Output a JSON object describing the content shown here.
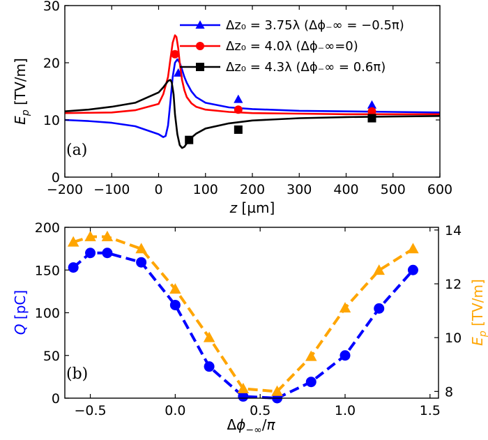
{
  "chart_data": [
    {
      "type": "line",
      "panel_label": "(a)",
      "xlabel": "z [µm]",
      "ylabel": "E_p [TV/m]",
      "xlim": [
        -200,
        600
      ],
      "ylim": [
        0,
        30
      ],
      "xticks": [
        "−200",
        "−100",
        "0",
        "100",
        "200",
        "300",
        "400",
        "500",
        "600"
      ],
      "yticks": [
        "0",
        "10",
        "20",
        "30"
      ],
      "grid": false,
      "legend_position": "top-right",
      "series": [
        {
          "name": "Δz₀ = 3.75λ (Δϕ₋∞ = −0.5π)",
          "color": "#0000ff",
          "marker": "triangle",
          "line_x": [
            -200,
            -150,
            -100,
            -50,
            0,
            10,
            15,
            20,
            25,
            30,
            35,
            40,
            45,
            50,
            55,
            60,
            70,
            80,
            100,
            150,
            200,
            300,
            400,
            500,
            600
          ],
          "line_y": [
            10.0,
            9.8,
            9.5,
            8.9,
            7.5,
            7.0,
            7.2,
            9.0,
            13.0,
            17.5,
            20.0,
            20.6,
            20.0,
            18.8,
            17.5,
            16.5,
            15.0,
            14.0,
            13.0,
            12.2,
            11.9,
            11.6,
            11.5,
            11.4,
            11.3
          ],
          "markers_x": [
            42,
            170,
            455
          ],
          "markers_y": [
            18.2,
            13.6,
            12.6
          ]
        },
        {
          "name": "Δz₀ = 4.0λ (Δϕ₋∞=0)",
          "color": "#ff0000",
          "marker": "circle",
          "line_x": [
            -200,
            -100,
            -50,
            0,
            10,
            20,
            25,
            30,
            35,
            38,
            42,
            45,
            50,
            55,
            60,
            70,
            80,
            100,
            150,
            200,
            300,
            400,
            500,
            600
          ],
          "line_y": [
            11.2,
            11.3,
            11.7,
            12.8,
            14.5,
            17.5,
            20.5,
            23.5,
            24.8,
            24.5,
            22.5,
            20.0,
            17.0,
            15.2,
            14.0,
            12.9,
            12.3,
            11.8,
            11.4,
            11.2,
            11.1,
            11.0,
            11.0,
            11.0
          ],
          "markers_x": [
            35,
            170,
            455
          ],
          "markers_y": [
            21.5,
            11.8,
            11.5
          ]
        },
        {
          "name": "Δz₀ = 4.3λ (Δϕ₋∞ = 0.6π)",
          "color": "#000000",
          "marker": "square",
          "line_x": [
            -200,
            -150,
            -100,
            -50,
            0,
            10,
            20,
            25,
            28,
            32,
            35,
            40,
            45,
            50,
            55,
            60,
            70,
            80,
            100,
            150,
            200,
            300,
            400,
            500,
            600
          ],
          "line_y": [
            11.5,
            11.8,
            12.3,
            13.0,
            14.8,
            15.7,
            16.8,
            17.0,
            16.6,
            14.5,
            11.0,
            7.5,
            5.6,
            5.1,
            5.3,
            5.9,
            6.9,
            7.6,
            8.5,
            9.4,
            9.9,
            10.3,
            10.5,
            10.6,
            10.7
          ],
          "markers_x": [
            65,
            170,
            455
          ],
          "markers_y": [
            6.5,
            8.3,
            10.3
          ]
        }
      ]
    },
    {
      "type": "line",
      "panel_label": "(b)",
      "xlabel": "Δϕ₋∞/π",
      "ylabel_left": "Q [pC]",
      "ylabel_right": "E_p [TV/m]",
      "xlim": [
        -0.65,
        1.55
      ],
      "ylim_left": [
        0,
        200
      ],
      "ylim_right": [
        7.75,
        14.1
      ],
      "xticks": [
        "−0.5",
        "0.0",
        "0.5",
        "1.0",
        "1.5"
      ],
      "yticks_left": [
        "0",
        "50",
        "100",
        "150",
        "200"
      ],
      "yticks_right": [
        "8",
        "10",
        "12",
        "14"
      ],
      "grid": false,
      "series": [
        {
          "name": "Q",
          "axis": "left",
          "color": "#0000ff",
          "marker": "circle",
          "x": [
            -0.6,
            -0.5,
            -0.4,
            -0.2,
            0.0,
            0.2,
            0.4,
            0.6,
            0.8,
            1.0,
            1.2,
            1.4
          ],
          "y": [
            153,
            170,
            170,
            159,
            109,
            37,
            2,
            0,
            19,
            50,
            105,
            150
          ]
        },
        {
          "name": "E_p",
          "axis": "right",
          "color": "#ffa500",
          "marker": "triangle",
          "x": [
            -0.6,
            -0.5,
            -0.4,
            -0.2,
            0.0,
            0.2,
            0.4,
            0.6,
            0.8,
            1.0,
            1.2,
            1.4
          ],
          "y": [
            13.55,
            13.75,
            13.75,
            13.3,
            11.8,
            10.0,
            8.1,
            8.0,
            9.3,
            11.1,
            12.5,
            13.3
          ]
        }
      ]
    }
  ]
}
